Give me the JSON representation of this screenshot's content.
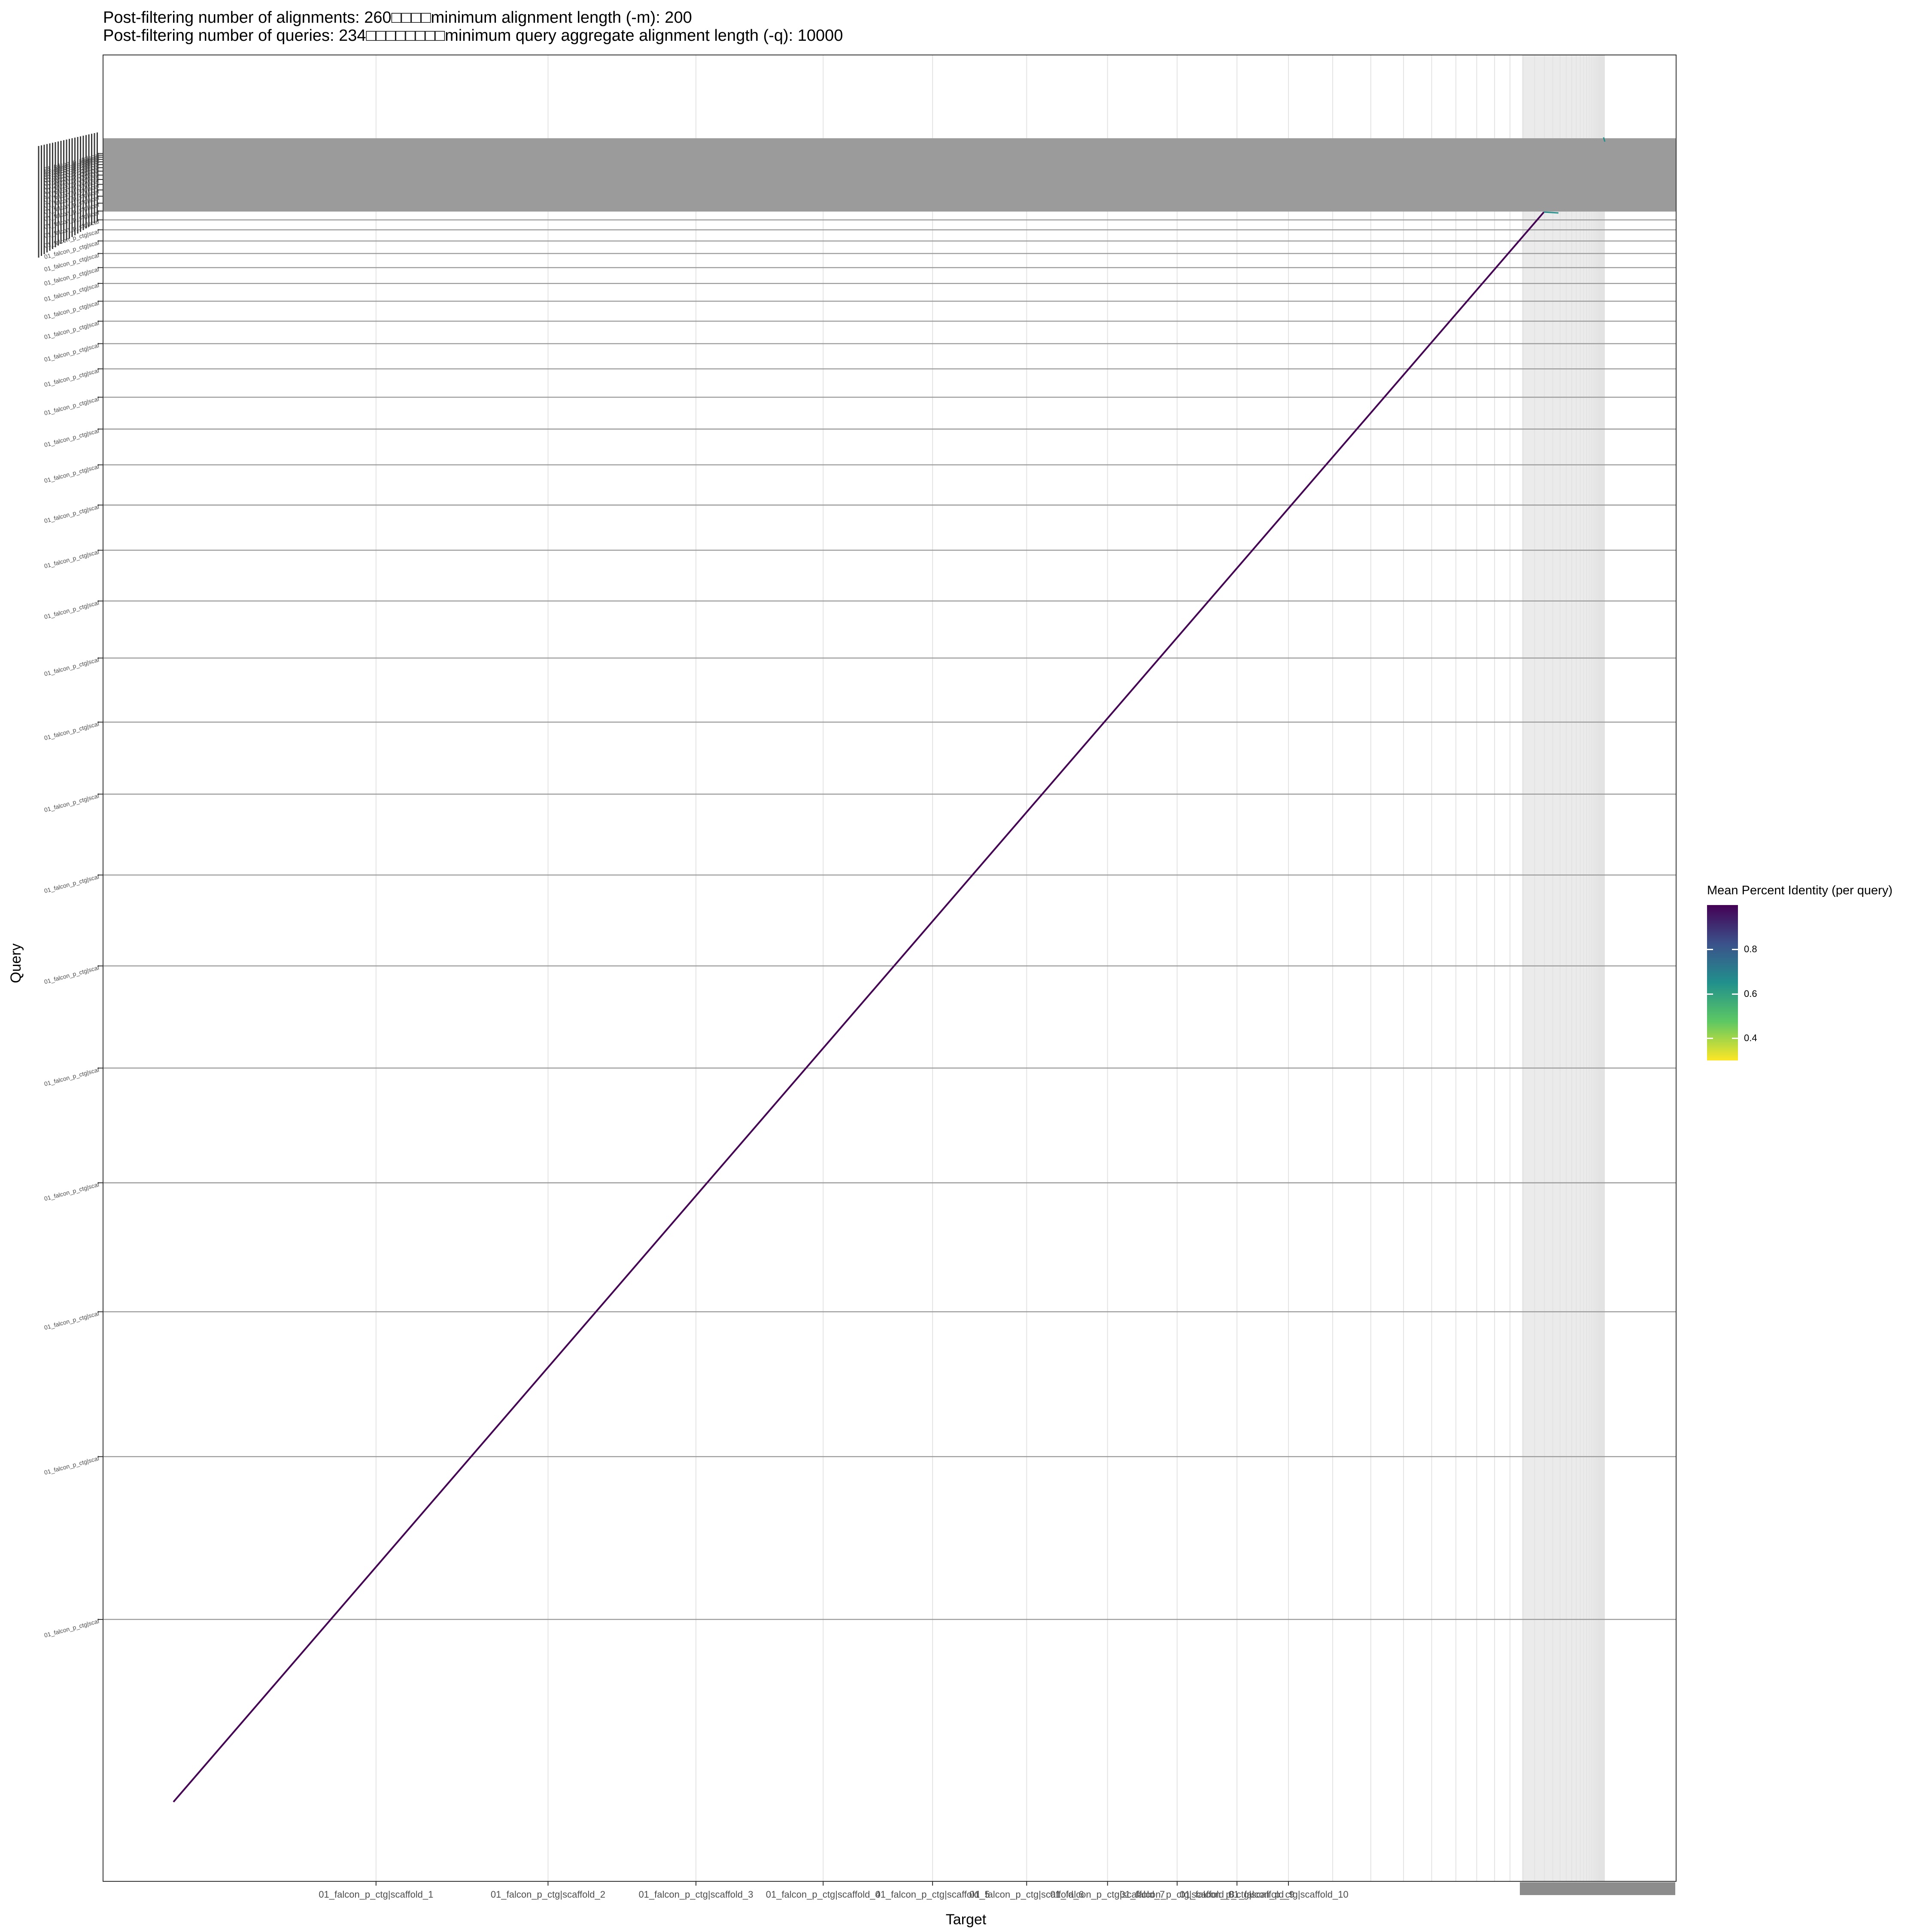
{
  "header": {
    "line1": "Post-filtering number of alignments: 260□□□□minimum alignment length (-m): 200",
    "line2": "Post-filtering number of queries: 234□□□□□□□□minimum query aggregate alignment length (-q): 10000"
  },
  "axes": {
    "x_title": "Target",
    "y_title": "Query"
  },
  "legend": {
    "title": "Mean Percent Identity (per query)",
    "ticks": [
      {
        "label": "0.8",
        "value": 0.8
      },
      {
        "label": "0.6",
        "value": 0.6
      },
      {
        "label": "0.4",
        "value": 0.4
      }
    ],
    "min": 0.3,
    "max": 1.0,
    "colors": [
      "#440154",
      "#3b528b",
      "#21908c",
      "#5dc863",
      "#fde725"
    ]
  },
  "chart_data": {
    "type": "scatter",
    "title": "",
    "xlabel": "Target",
    "ylabel": "Query",
    "x_tick_labels": [
      "01_falcon_p_ctg|scaffold_1",
      "01_falcon_p_ctg|scaffold_2",
      "01_falcon_p_ctg|scaffold_3",
      "01_falcon_p_ctg|scaffold_4",
      "01_falcon_p_ctg|scaffold_5",
      "01_falcon_p_ctg|scaffold_6",
      "01_falcon_p_ctg|scaffold_7",
      "01_falcon_p_ctg|scaffold_8",
      "01_falcon_p_ctg|scaffold_9",
      "01_falcon_p_ctg|scaffold_10"
    ],
    "y_tick_label": "01_falcon_p_ctg|scaf",
    "target_count": 234,
    "query_count": 234,
    "diagonal": {
      "x": [
        0,
        1
      ],
      "y": [
        0,
        1
      ],
      "percent_identity": 0.99
    },
    "color_scale": "viridis",
    "grid": true,
    "legend_position": "right"
  }
}
